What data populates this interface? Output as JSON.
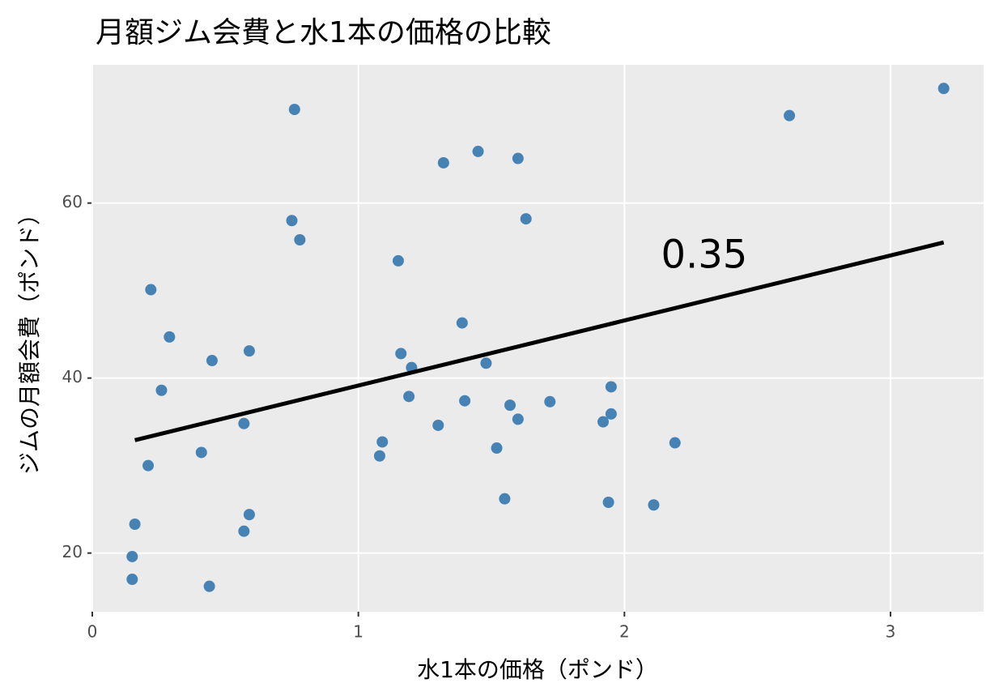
{
  "chart_data": {
    "type": "scatter",
    "title": "月額ジム会費と水1本の価格の比較",
    "x_label": "水1本の価格（ポンド）",
    "y_label": "ジムの月額会費（ポンド）",
    "color": "#4682b4",
    "grid": true,
    "xlim": [
      0,
      3.35
    ],
    "xticks": [
      0,
      1,
      2,
      3
    ],
    "ylim": [
      13.3,
      75.8
    ],
    "yticks": [
      20,
      40,
      60
    ],
    "series": [
      {
        "x": [
          0.76,
          2.62,
          3.2,
          1.32,
          1.45,
          1.6,
          1.63,
          0.75,
          0.78,
          1.15,
          0.22,
          0.29,
          1.39,
          0.45,
          0.59,
          1.16,
          1.2,
          1.48,
          1.95,
          0.26,
          1.19,
          1.4,
          1.72,
          1.57,
          1.95,
          1.6,
          1.92,
          0.57,
          1.3,
          1.09,
          2.19,
          1.52,
          0.41,
          1.08,
          0.21,
          0.59,
          0.16,
          0.57,
          1.55,
          1.94,
          2.11,
          0.15,
          0.15,
          0.44
        ],
        "values": [
          70.7,
          70.0,
          73.1,
          64.6,
          65.9,
          65.1,
          58.2,
          58.0,
          55.8,
          53.4,
          50.1,
          44.7,
          46.3,
          42.0,
          43.1,
          42.8,
          41.2,
          41.7,
          39.0,
          38.6,
          37.9,
          37.4,
          37.3,
          36.9,
          35.9,
          35.3,
          35.0,
          34.8,
          34.6,
          32.7,
          32.6,
          32.0,
          31.5,
          31.1,
          30.0,
          24.4,
          23.3,
          22.5,
          26.2,
          25.8,
          25.5,
          19.6,
          17.0,
          16.2
        ]
      }
    ],
    "trend": {
      "color": "#000000",
      "x": [
        0.16,
        3.2
      ],
      "values": [
        32.9,
        55.5
      ]
    },
    "annotations": [
      {
        "text": "0.35",
        "x": 2.3,
        "y": 53.8
      }
    ]
  }
}
